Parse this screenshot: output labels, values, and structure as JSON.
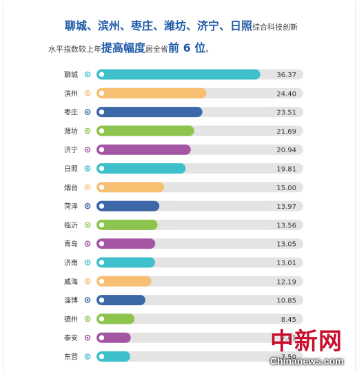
{
  "title": {
    "line1": [
      {
        "text": "聊城、滨州、枣庄、潍坊、济宁、日照",
        "style": "hl"
      },
      {
        "text": "综合科技创新",
        "style": "plain"
      }
    ],
    "line2": [
      {
        "text": "水平指数较上年",
        "style": "plain"
      },
      {
        "text": "提高幅度",
        "style": "hl"
      },
      {
        "text": "居全省",
        "style": "plain"
      },
      {
        "text": "前 6 位",
        "style": "hl"
      },
      {
        "text": "。",
        "style": "plain"
      }
    ]
  },
  "colors": {
    "track": "#e4e4e4",
    "palette": [
      "#3dbfcc",
      "#f7bf72",
      "#3d68a8",
      "#8dc44e",
      "#a456a5"
    ],
    "label": "#333333"
  },
  "chart_data": {
    "type": "bar",
    "orientation": "horizontal",
    "categories": [
      "聊城",
      "滨州",
      "枣庄",
      "潍坊",
      "济宁",
      "日照",
      "烟台",
      "菏泽",
      "临沂",
      "青岛",
      "济南",
      "威海",
      "淄博",
      "德州",
      "泰安",
      "东营"
    ],
    "values": [
      36.37,
      24.4,
      23.51,
      21.69,
      20.94,
      19.81,
      15.0,
      13.97,
      13.56,
      13.05,
      13.01,
      12.19,
      10.85,
      8.45,
      7.61,
      7.5
    ],
    "value_labels": [
      "36.37",
      "24.40",
      "23.51",
      "21.69",
      "20.94",
      "19.81",
      "15.00",
      "13.97",
      "13.56",
      "13.05",
      "13.01",
      "12.19",
      "10.85",
      "8.45",
      "7.61",
      "7.50"
    ],
    "xlim": [
      0,
      37.5
    ],
    "grid": false,
    "legend": "none"
  },
  "watermark": {
    "cn": "中新网",
    "en": "Chinanews.com"
  }
}
